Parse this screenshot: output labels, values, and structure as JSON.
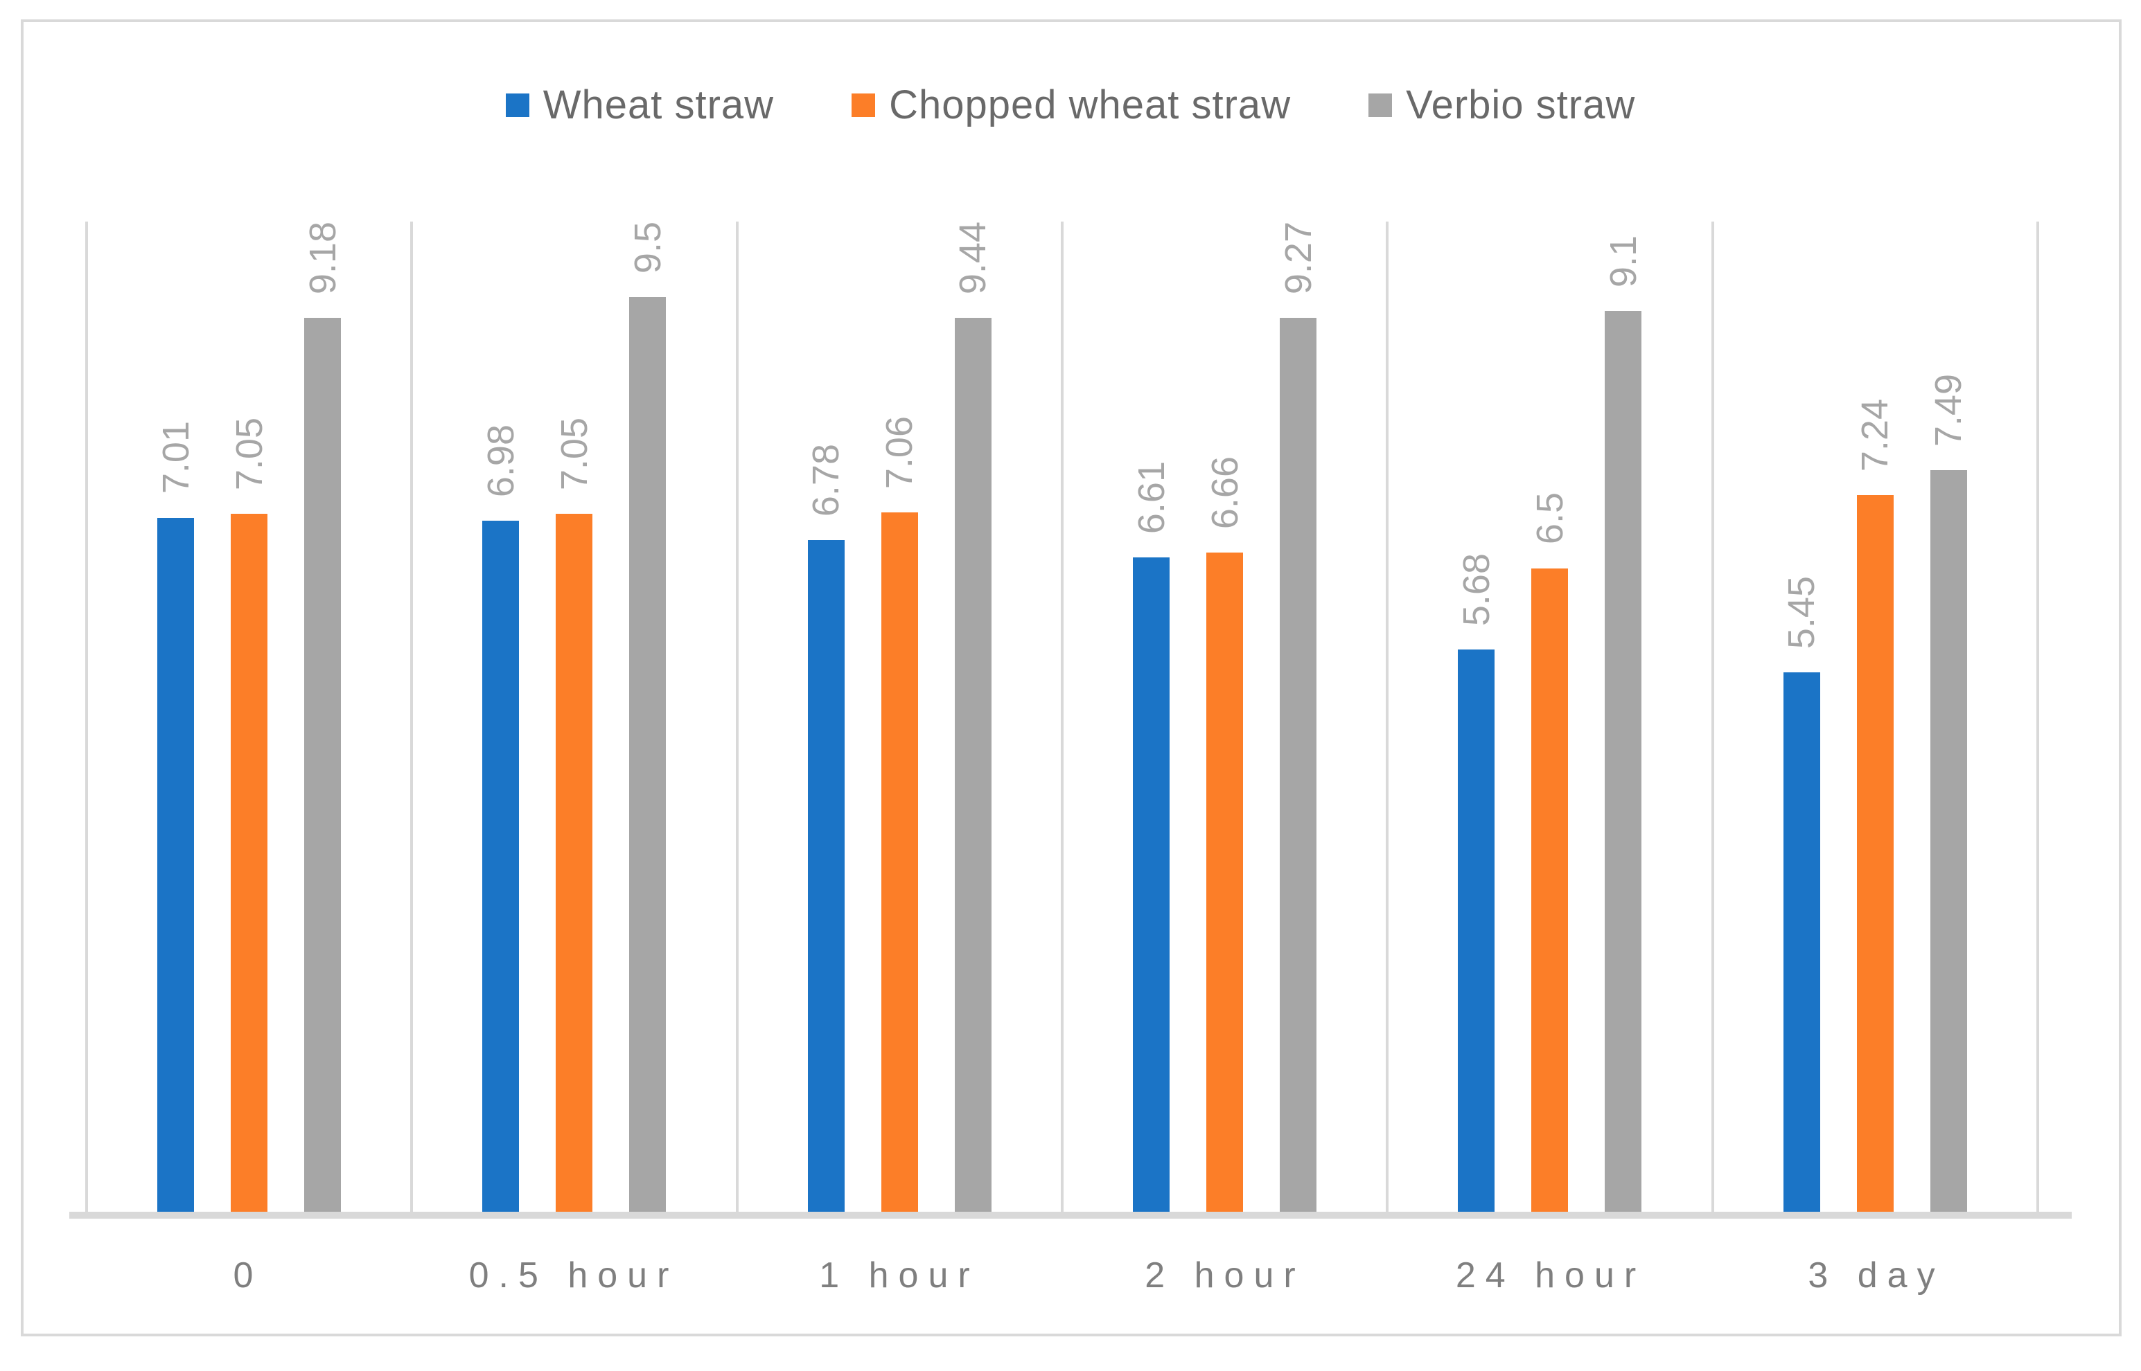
{
  "chart_data": {
    "type": "bar",
    "title": "",
    "categories": [
      "0",
      "0.5 hour",
      "1 hour",
      "2 hour",
      "24 hour",
      "3 day"
    ],
    "series": [
      {
        "name": "Wheat straw",
        "color": "#1B74C6",
        "values": [
          7.01,
          6.98,
          6.78,
          6.61,
          5.68,
          5.45
        ]
      },
      {
        "name": "Chopped wheat straw",
        "color": "#FC7E28",
        "values": [
          7.05,
          7.05,
          7.06,
          6.66,
          6.5,
          7.24
        ]
      },
      {
        "name": "Verbio straw",
        "color": "#A6A6A6",
        "values": [
          9.18,
          9.5,
          9.44,
          9.27,
          9.1,
          7.49
        ]
      }
    ],
    "data_labels": [
      "7.01",
      "7.05",
      "9.18",
      "6.98",
      "7.05",
      "9.5",
      "6.78",
      "7.06",
      "9.44",
      "6.61",
      "6.66",
      "9.27",
      "5.68",
      "6.5",
      "9.1",
      "5.45",
      "7.24",
      "7.49"
    ],
    "xlabel": "",
    "ylabel": "",
    "ylim": [
      0,
      10
    ],
    "grid": "vertical category separators only",
    "legend_position": "top-center",
    "data_label_style": "rotated 90deg, gray, above bar"
  },
  "styles": {
    "frame_border_color": "#D9D9D9",
    "separator_color": "#D9D9D9",
    "baseline_color": "#D9D9D9",
    "data_label_color": "#A6A6A6",
    "axis_label_color": "#7F7F7F",
    "legend_text_color": "#696969",
    "background": "#FFFFFF"
  }
}
